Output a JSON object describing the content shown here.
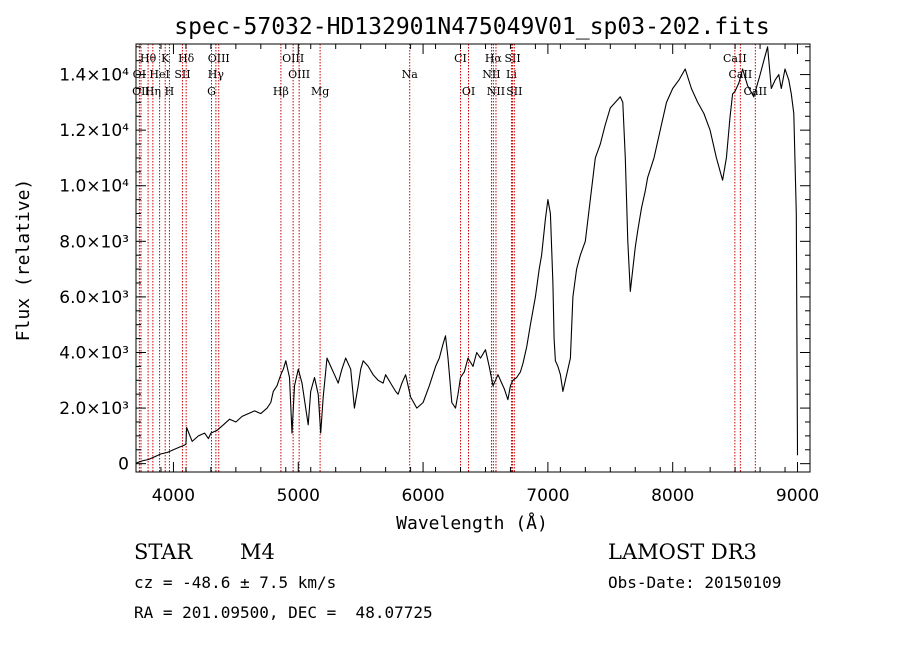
{
  "chart_data": {
    "type": "line",
    "title": "spec-57032-HD132901N475049V01_sp03-202.fits",
    "xlabel": "Wavelength (Å)",
    "ylabel": "Flux (relative)",
    "xlim": [
      3700,
      9100
    ],
    "ylim": [
      -300,
      15100
    ],
    "xticks": [
      4000,
      5000,
      6000,
      7000,
      8000,
      9000
    ],
    "yticks": [
      {
        "value": 0,
        "label": "0"
      },
      {
        "value": 2000,
        "label": "2.0×10³"
      },
      {
        "value": 4000,
        "label": "4.0×10³"
      },
      {
        "value": 6000,
        "label": "6.0×10³"
      },
      {
        "value": 8000,
        "label": "8.0×10³"
      },
      {
        "value": 10000,
        "label": "1.0×10⁴"
      },
      {
        "value": 12000,
        "label": "1.2×10⁴"
      },
      {
        "value": 14000,
        "label": "1.4×10⁴"
      }
    ],
    "series": [
      {
        "name": "flux",
        "x": [
          3700,
          3750,
          3800,
          3850,
          3900,
          3950,
          4000,
          4050,
          4080,
          4100,
          4105,
          4150,
          4200,
          4250,
          4280,
          4300,
          4350,
          4400,
          4450,
          4500,
          4550,
          4600,
          4650,
          4700,
          4750,
          4780,
          4800,
          4830,
          4860,
          4880,
          4900,
          4930,
          4950,
          4970,
          5000,
          5030,
          5060,
          5080,
          5100,
          5130,
          5160,
          5180,
          5200,
          5230,
          5260,
          5290,
          5320,
          5350,
          5380,
          5420,
          5450,
          5480,
          5500,
          5520,
          5560,
          5600,
          5640,
          5680,
          5700,
          5740,
          5780,
          5800,
          5830,
          5860,
          5900,
          5950,
          6000,
          6050,
          6100,
          6130,
          6160,
          6180,
          6200,
          6230,
          6260,
          6280,
          6300,
          6330,
          6360,
          6400,
          6430,
          6460,
          6500,
          6530,
          6560,
          6580,
          6600,
          6630,
          6650,
          6680,
          6700,
          6720,
          6750,
          6780,
          6800,
          6830,
          6860,
          6900,
          6930,
          6950,
          6980,
          7000,
          7020,
          7040,
          7050,
          7060,
          7080,
          7100,
          7120,
          7140,
          7180,
          7200,
          7230,
          7260,
          7300,
          7340,
          7380,
          7420,
          7460,
          7500,
          7540,
          7580,
          7600,
          7620,
          7640,
          7660,
          7680,
          7700,
          7720,
          7750,
          7780,
          7800,
          7850,
          7900,
          7950,
          8000,
          8050,
          8100,
          8150,
          8200,
          8250,
          8300,
          8350,
          8400,
          8430,
          8460,
          8480,
          8500,
          8530,
          8560,
          8600,
          8650,
          8700,
          8730,
          8760,
          8790,
          8820,
          8850,
          8870,
          8900,
          8930,
          8950,
          8970,
          8990,
          9000
        ],
        "y": [
          20,
          100,
          150,
          250,
          350,
          400,
          500,
          600,
          650,
          700,
          1300,
          800,
          1000,
          1100,
          900,
          1100,
          1200,
          1400,
          1600,
          1500,
          1700,
          1800,
          1900,
          1800,
          2000,
          2200,
          2600,
          2800,
          3200,
          3400,
          3700,
          3100,
          1100,
          2800,
          3400,
          2900,
          2000,
          1400,
          2600,
          3100,
          2500,
          1100,
          2400,
          3800,
          3500,
          3200,
          2900,
          3400,
          3800,
          3400,
          2000,
          2800,
          3400,
          3700,
          3500,
          3200,
          3000,
          2900,
          3200,
          2900,
          2600,
          2500,
          2900,
          3200,
          2400,
          2000,
          2200,
          2800,
          3500,
          3800,
          4300,
          4600,
          3800,
          2200,
          2000,
          2500,
          3100,
          3300,
          3800,
          3500,
          4000,
          3800,
          4100,
          3500,
          2800,
          3000,
          3200,
          2900,
          2700,
          2300,
          2800,
          3000,
          3100,
          3300,
          3600,
          4200,
          5000,
          6000,
          7000,
          7500,
          8800,
          9500,
          9000,
          6500,
          4500,
          3700,
          3500,
          3200,
          2600,
          3000,
          3800,
          6000,
          7000,
          7500,
          8000,
          9500,
          11000,
          11500,
          12200,
          12800,
          13000,
          13200,
          13000,
          11000,
          8000,
          6200,
          7000,
          7800,
          8400,
          9200,
          9800,
          10300,
          11000,
          12000,
          13000,
          13500,
          13800,
          14200,
          13500,
          13000,
          12600,
          12000,
          11000,
          10200,
          11000,
          12500,
          13300,
          13400,
          13700,
          14200,
          13600,
          13200,
          14000,
          14500,
          15000,
          13500,
          13800,
          14000,
          13500,
          14200,
          13800,
          13300,
          12600,
          9000,
          300
        ]
      }
    ],
    "line_markers": [
      {
        "label": "Hθ",
        "wavelength": 3797,
        "row": 0
      },
      {
        "label": "K",
        "wavelength": 3934,
        "row": 0
      },
      {
        "label": "Hδ",
        "wavelength": 4102,
        "row": 0
      },
      {
        "label": "OIII",
        "wavelength": 4363,
        "row": 0
      },
      {
        "label": "OIII",
        "wavelength": 4959,
        "row": 0
      },
      {
        "label": "CI",
        "wavelength": 6300,
        "row": 0
      },
      {
        "label": "Hα",
        "wavelength": 6563,
        "row": 0
      },
      {
        "label": "SII",
        "wavelength": 6717,
        "row": 0
      },
      {
        "label": "CaII",
        "wavelength": 8498,
        "row": 0
      },
      {
        "label": "OI",
        "wavelength": 3727,
        "row": 1
      },
      {
        "label": "HeI",
        "wavelength": 3889,
        "row": 1
      },
      {
        "label": "SII",
        "wavelength": 4072,
        "row": 1
      },
      {
        "label": "Hγ",
        "wavelength": 4340,
        "row": 1
      },
      {
        "label": "OIII",
        "wavelength": 5007,
        "row": 1
      },
      {
        "label": "Na",
        "wavelength": 5893,
        "row": 1
      },
      {
        "label": "NII",
        "wavelength": 6548,
        "row": 1
      },
      {
        "label": "Li",
        "wavelength": 6708,
        "row": 1
      },
      {
        "label": "CaII",
        "wavelength": 8542,
        "row": 1
      },
      {
        "label": "OII",
        "wavelength": 3740,
        "row": 2
      },
      {
        "label": "Hη",
        "wavelength": 3835,
        "row": 2
      },
      {
        "label": "H",
        "wavelength": 3968,
        "row": 2
      },
      {
        "label": "G",
        "wavelength": 4305,
        "row": 2
      },
      {
        "label": "Hβ",
        "wavelength": 4861,
        "row": 2
      },
      {
        "label": "Mg",
        "wavelength": 5175,
        "row": 2
      },
      {
        "label": "OI",
        "wavelength": 6364,
        "row": 2
      },
      {
        "label": "NII",
        "wavelength": 6584,
        "row": 2
      },
      {
        "label": "SII",
        "wavelength": 6731,
        "row": 2
      },
      {
        "label": "CaII",
        "wavelength": 8662,
        "row": 2
      }
    ]
  },
  "info": {
    "class_label": "STAR",
    "subclass_label": "M4",
    "survey_label": "LAMOST DR3",
    "cz_text": "cz = -48.6 ± 7.5 km/s",
    "coords_text": "RA = 201.09500, DEC =  48.07725",
    "obs_date_text": "Obs-Date: 20150109"
  },
  "colors": {
    "line": "#000000",
    "marker": "#cc0000",
    "axis": "#000000"
  }
}
